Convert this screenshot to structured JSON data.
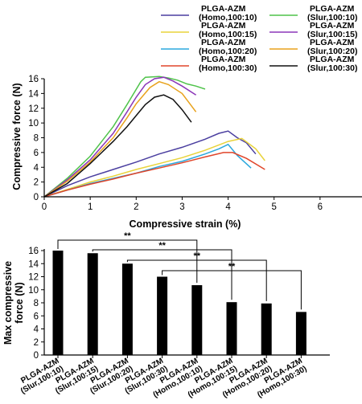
{
  "chart_data": [
    {
      "type": "line",
      "xlabel": "Compressive strain (%)",
      "ylabel": "Compressive force (N)",
      "xlim": [
        0,
        7
      ],
      "ylim": [
        0,
        16
      ],
      "xticks": [
        "0",
        "1",
        "2",
        "3",
        "4",
        "5",
        "6"
      ],
      "yticks": [
        "0",
        "2",
        "4",
        "6",
        "8",
        "10",
        "12",
        "14",
        "16"
      ],
      "grid": false,
      "legend_placement": "top-right",
      "series": [
        {
          "name": "PLGA-AZM (Homo,100:10)",
          "color": "#4b3fa0",
          "x": [
            0,
            0.5,
            1,
            1.5,
            2,
            2.5,
            3,
            3.5,
            3.8,
            4.0,
            4.2,
            4.4,
            4.6
          ],
          "y": [
            0,
            1.5,
            2.7,
            3.7,
            4.7,
            5.8,
            6.7,
            7.8,
            8.6,
            8.9,
            8.0,
            7.3,
            5.8
          ]
        },
        {
          "name": "PLGA-AZM (Homo,100:15)",
          "color": "#e8d33a",
          "x": [
            0,
            0.5,
            1,
            1.5,
            2,
            2.5,
            3,
            3.5,
            4.0,
            4.3,
            4.6,
            4.8
          ],
          "y": [
            0,
            1.0,
            2.0,
            2.8,
            3.7,
            4.5,
            5.3,
            6.3,
            7.5,
            7.9,
            6.5,
            4.9
          ]
        },
        {
          "name": "PLGA-AZM (Homo,100:20)",
          "color": "#2aa8dd",
          "x": [
            0,
            0.5,
            1,
            1.5,
            2,
            2.5,
            3,
            3.5,
            3.8,
            4.0,
            4.2,
            4.5
          ],
          "y": [
            0,
            0.9,
            1.8,
            2.5,
            3.2,
            4.1,
            4.8,
            5.8,
            6.5,
            7.1,
            5.6,
            3.9
          ]
        },
        {
          "name": "PLGA-AZM (Homo,100:30)",
          "color": "#e0452a",
          "x": [
            0,
            0.5,
            1,
            1.5,
            2,
            2.5,
            3,
            3.5,
            3.9,
            4.1,
            4.4,
            4.8
          ],
          "y": [
            0,
            0.9,
            1.7,
            2.4,
            3.2,
            3.9,
            4.6,
            5.4,
            6.0,
            6.0,
            5.2,
            3.7
          ]
        },
        {
          "name": "PLGA-AZM (Slur,100:10)",
          "color": "#4fc34a",
          "x": [
            0,
            0.5,
            1,
            1.5,
            1.8,
            2.1,
            2.2,
            2.5,
            2.7,
            2.9,
            3.1,
            3.3,
            3.5
          ],
          "y": [
            0,
            2.5,
            5.5,
            9.5,
            12.5,
            15.6,
            16.2,
            16.3,
            16.1,
            15.8,
            15.3,
            15.0,
            14.6
          ]
        },
        {
          "name": "PLGA-AZM (Slur,100:15)",
          "color": "#8b36b8",
          "x": [
            0,
            0.5,
            1,
            1.5,
            1.8,
            2.0,
            2.2,
            2.4,
            2.6,
            2.8,
            3.0,
            3.3
          ],
          "y": [
            0,
            2.3,
            5.0,
            8.6,
            11.5,
            13.5,
            15.2,
            16.0,
            16.2,
            15.7,
            15.0,
            13.8
          ]
        },
        {
          "name": "PLGA-AZM (Slur,100:20)",
          "color": "#e8a21c",
          "x": [
            0,
            0.5,
            1,
            1.5,
            1.8,
            2.0,
            2.3,
            2.5,
            2.7,
            3.0,
            3.3
          ],
          "y": [
            0,
            2.1,
            4.7,
            8.0,
            10.7,
            12.6,
            14.8,
            15.6,
            15.2,
            14.0,
            11.5
          ]
        },
        {
          "name": "PLGA-AZM (Slur,100:30)",
          "color": "#111111",
          "x": [
            0,
            0.5,
            1,
            1.5,
            1.8,
            2.0,
            2.2,
            2.4,
            2.6,
            2.8,
            3.0,
            3.2
          ],
          "y": [
            0,
            1.8,
            4.5,
            7.5,
            9.5,
            11.0,
            12.5,
            13.5,
            13.8,
            13.2,
            11.8,
            10.1
          ]
        }
      ]
    },
    {
      "type": "bar",
      "ylabel": "Max compressive force (N)",
      "ylim": [
        0,
        16
      ],
      "yticks": [
        "0",
        "2",
        "4",
        "6",
        "8",
        "10",
        "12",
        "14",
        "16"
      ],
      "categories": [
        "PLGA-AZM (Slur,100:10)",
        "PLGA-AZM (Slur,100:15)",
        "PLGA-AZM (Slur,100:20)",
        "PLGA-AZM (Slur,100:30)",
        "PLGA-AZM (Homo,100:10)",
        "PLGA-AZM (Homo,100:15)",
        "PLGA-AZM (Homo,100:20)",
        "PLGA-AZM (Homo,100:30)"
      ],
      "values": [
        16.0,
        15.6,
        14.0,
        12.0,
        10.7,
        8.1,
        7.9,
        6.6
      ],
      "bar_color": "#000000",
      "significance": [
        {
          "from": 0,
          "to": 4,
          "label": "**"
        },
        {
          "from": 1,
          "to": 5,
          "label": "**"
        },
        {
          "from": 2,
          "to": 6,
          "label": "**"
        },
        {
          "from": 3,
          "to": 7,
          "label": "**"
        }
      ]
    }
  ]
}
